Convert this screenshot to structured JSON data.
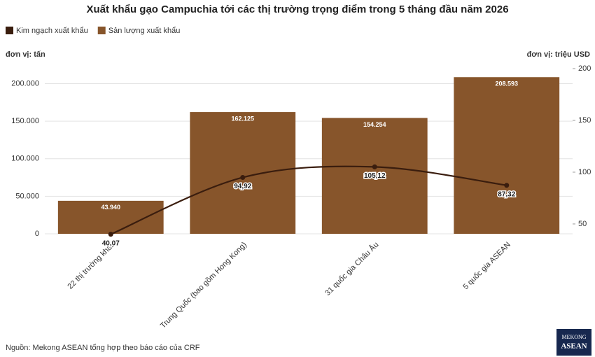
{
  "chart_data": {
    "type": "bar",
    "title": "Xuất khẩu gạo Campuchia tới các thị trường trọng điểm trong 5 tháng đầu năm 2026",
    "y_label": "đơn vị: tấn",
    "y2_label": "đơn vị: triệu USD",
    "categories": [
      "22 thị trường khác",
      "Trung Quốc (bao gồm Hong Kong)",
      "31 quốc gia Châu Âu",
      "5 quốc gia ASEAN"
    ],
    "series": [
      {
        "name": "Kim ngạch xuất khẩu",
        "type": "line",
        "axis": "y2",
        "color": "#3a1d0e",
        "values": [
          40.07,
          94.92,
          105.12,
          87.32
        ],
        "value_labels": [
          "40,07",
          "94,92",
          "105,12",
          "87,32"
        ]
      },
      {
        "name": "Sản lượng xuất khẩu",
        "type": "bar",
        "color": "#87552b",
        "values": [
          43940,
          162125,
          154254,
          208593
        ],
        "value_labels": [
          "43.940",
          "162.125",
          "154.254",
          "208.593"
        ]
      }
    ],
    "ylim": [
      0,
      220000
    ],
    "yticks": [
      0,
      {
        "value": 50000,
        "label": "50.000"
      },
      {
        "value": 100000,
        "label": "100.000"
      },
      {
        "value": 150000,
        "label": "150.000"
      },
      {
        "value": 200000,
        "label": "200.000"
      }
    ],
    "y2lim": [
      40.5,
      200
    ],
    "y2ticks": [
      50,
      100,
      150,
      200
    ],
    "grid": true,
    "legend": "top-left",
    "source": "Nguồn: Mekong ASEAN tổng hợp theo báo cáo của CRF",
    "logo": [
      "MEKONG",
      "ASEAN"
    ]
  }
}
